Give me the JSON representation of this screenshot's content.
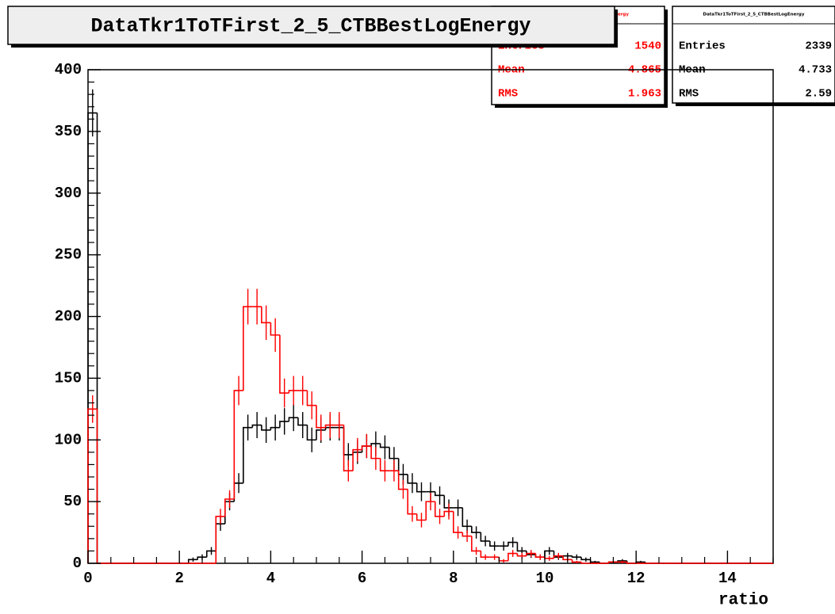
{
  "chart_data": {
    "type": "histogram",
    "title": "DataTkr1ToTFirst_2_5_CTBBestLogEnergy",
    "xlabel": "ratio",
    "bins": [
      0,
      0.2,
      0.4,
      0.6,
      0.8,
      1,
      1.2,
      1.4,
      1.6,
      1.8,
      2,
      2.2,
      2.4,
      2.6,
      2.8,
      3,
      3.2,
      3.4,
      3.6,
      3.8,
      4,
      4.2,
      4.4,
      4.6,
      4.8,
      5,
      5.2,
      5.4,
      5.6,
      5.8,
      6,
      6.2,
      6.4,
      6.6,
      6.8,
      7,
      7.2,
      7.4,
      7.6,
      7.8,
      8,
      8.2,
      8.4,
      8.6,
      8.8,
      9,
      9.2,
      9.4,
      9.6,
      9.8,
      10,
      10.2,
      10.4,
      10.6,
      10.8,
      11,
      11.2,
      11.4,
      11.6,
      11.8,
      12,
      12.2,
      12.4,
      12.6,
      12.8,
      13,
      13.2,
      13.4,
      13.6,
      13.8,
      14,
      14.2,
      14.4,
      14.6,
      14.8,
      15
    ],
    "series": [
      {
        "color": "#000000",
        "values": [
          365,
          0,
          0,
          0,
          0,
          0,
          0,
          0,
          0,
          0,
          0,
          3,
          5,
          10,
          32,
          50,
          65,
          110,
          112,
          108,
          110,
          115,
          118,
          112,
          100,
          108,
          110,
          110,
          88,
          90,
          95,
          97,
          94,
          85,
          72,
          65,
          58,
          58,
          55,
          45,
          45,
          30,
          25,
          18,
          14,
          14,
          17,
          10,
          7,
          5,
          10,
          5,
          6,
          5,
          3,
          1,
          0,
          1,
          2,
          0,
          1,
          0,
          0,
          0,
          0,
          0,
          0,
          0,
          0,
          0,
          0,
          0,
          0,
          0,
          0
        ]
      },
      {
        "color": "#ff0000",
        "values": [
          125,
          0,
          0,
          0,
          0,
          0,
          0,
          0,
          0,
          0,
          0,
          0,
          0,
          0,
          38,
          52,
          140,
          208,
          208,
          195,
          185,
          138,
          140,
          140,
          128,
          110,
          112,
          112,
          75,
          92,
          95,
          85,
          75,
          75,
          60,
          40,
          35,
          50,
          38,
          42,
          25,
          22,
          10,
          5,
          5,
          2,
          8,
          6,
          8,
          5,
          4,
          6,
          3,
          1,
          0,
          0,
          0,
          1,
          1,
          0,
          0,
          0,
          0,
          0,
          0,
          0,
          0,
          0,
          0,
          0,
          0,
          0,
          0,
          0,
          0
        ]
      }
    ],
    "xlim": [
      0,
      15
    ],
    "ylim": [
      0,
      400
    ],
    "xticks": [
      0,
      2,
      4,
      6,
      8,
      10,
      12,
      14
    ],
    "yticks": [
      0,
      50,
      100,
      150,
      200,
      250,
      300,
      350,
      400
    ],
    "stats": [
      {
        "title": "DataTkr1ToTFirst_2_5_CTBBestLogEnergy",
        "color": "#ff0000",
        "rows": [
          {
            "label": "Entries",
            "value": 1540
          },
          {
            "label": "Mean",
            "value": 4.865
          },
          {
            "label": "RMS",
            "value": 1.963
          }
        ]
      },
      {
        "title": "DataTkr1ToTFirst_2_5_CTBBestLogEnergy",
        "color": "#000000",
        "rows": [
          {
            "label": "Entries",
            "value": 2339
          },
          {
            "label": "Mean",
            "value": 4.733
          },
          {
            "label": "RMS",
            "value": 2.59
          }
        ]
      }
    ]
  }
}
